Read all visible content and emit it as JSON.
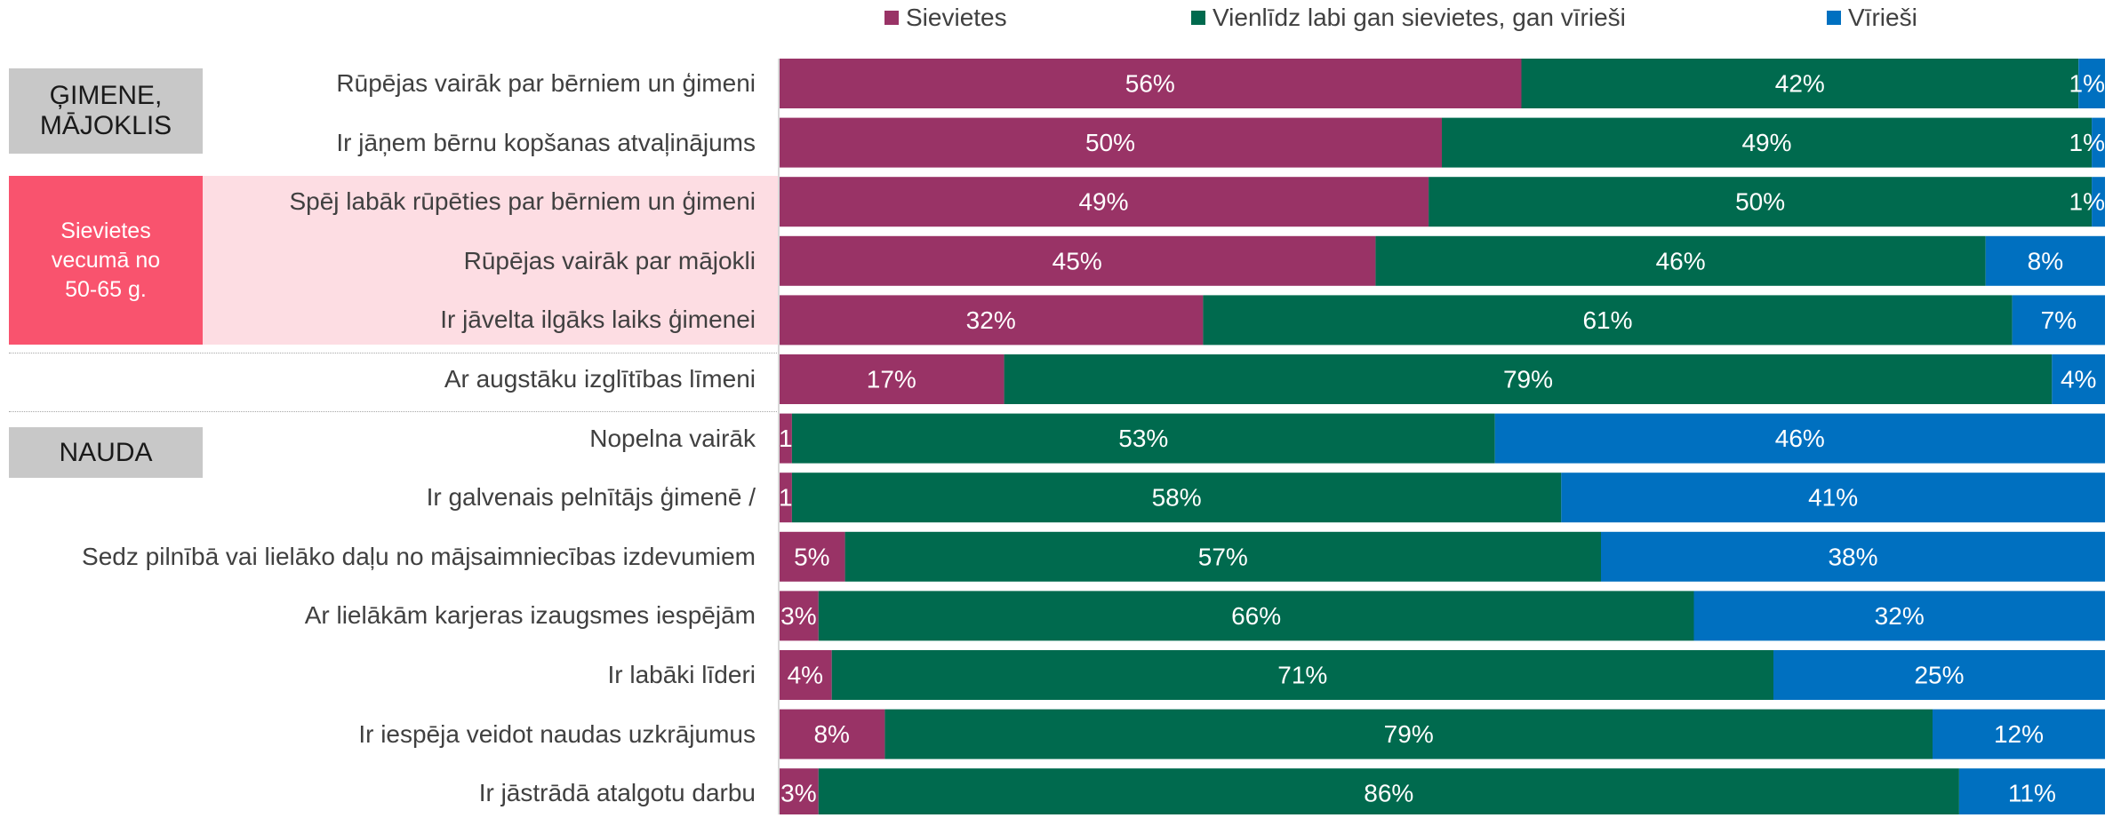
{
  "legend": {
    "women": "Sievietes",
    "equal": "Vienlīdz labi gan sievietes, gan vīrieši",
    "men": "Vīrieši"
  },
  "colors": {
    "women": "#993366",
    "equal": "#006a4e",
    "men": "#0070c0",
    "group_box": "#c8c8c8",
    "highlight_box": "#f9536e",
    "highlight_band": "#fddde3"
  },
  "groups": {
    "family": "ĢIMENE,\nMĀJOKLIS",
    "highlight": "Sievietes\nvecumā no\n50-65 g.",
    "money": "NAUDA"
  },
  "chart_data": {
    "type": "bar",
    "orientation": "horizontal",
    "stacked": true,
    "unit": "%",
    "xlim": [
      0,
      100
    ],
    "categories": [
      "Rūpējas vairāk  par bērniem un ģimeni",
      "Ir jāņem bērnu kopšanas atvaļinājums",
      "Spēj labāk rūpēties par bērniem un ģimeni",
      "Rūpējas vairāk par mājokli",
      "Ir jāvelta ilgāks laiks ģimenei",
      "Ar augstāku izglītības līmeni",
      "Nopelna vairāk",
      "Ir galvenais pelnītājs ģimenē /",
      "Sedz pilnībā vai lielāko daļu no mājsaimniecības izdevumiem",
      "Ar lielākām karjeras izaugsmes iespējām",
      "Ir labāki līderi",
      "Ir iespēja veidot naudas uzkrājumus",
      "Ir jāstrādā atalgotu darbu"
    ],
    "series": [
      {
        "name": "Sievietes",
        "values": [
          56,
          50,
          49,
          45,
          32,
          17,
          1,
          1,
          5,
          3,
          4,
          8,
          3
        ]
      },
      {
        "name": "Vienlīdz labi gan sievietes, gan vīrieši",
        "values": [
          42,
          49,
          50,
          46,
          61,
          79,
          53,
          58,
          57,
          66,
          71,
          79,
          86
        ]
      },
      {
        "name": "Vīrieši",
        "values": [
          1,
          1,
          1,
          8,
          7,
          4,
          46,
          41,
          38,
          32,
          25,
          12,
          11
        ]
      }
    ],
    "legend_position": "top",
    "grid": false
  }
}
